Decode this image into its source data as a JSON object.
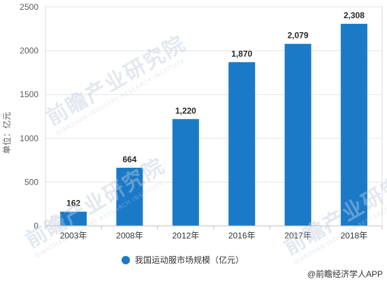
{
  "chart_data": {
    "type": "bar",
    "categories": [
      "2003年",
      "2008年",
      "2012年",
      "2016年",
      "2017年",
      "2018年"
    ],
    "series": [
      {
        "name": "我国运动服市场规模（亿元）",
        "values": [
          162,
          664,
          1220,
          1870,
          2079,
          2308
        ]
      }
    ],
    "data_labels": [
      "162",
      "664",
      "1,220",
      "1,870",
      "2,079",
      "2,308"
    ],
    "ylabel": "单位：亿元",
    "ylim": [
      0,
      2500
    ],
    "yticks": [
      0,
      500,
      1000,
      1500,
      2000,
      2500
    ],
    "ytick_labels": [
      "0",
      "500",
      "1000",
      "1500",
      "2000",
      "2500"
    ],
    "grid": true,
    "legend_position": "bottom-center",
    "bar_color": "#1a7ac8"
  },
  "watermark": {
    "text": "前瞻产业研究院",
    "subtext": "QIANZHAN INDUSTRY RESEARCH INSTITUTE"
  },
  "source_label": "@前瞻经济学人APP"
}
